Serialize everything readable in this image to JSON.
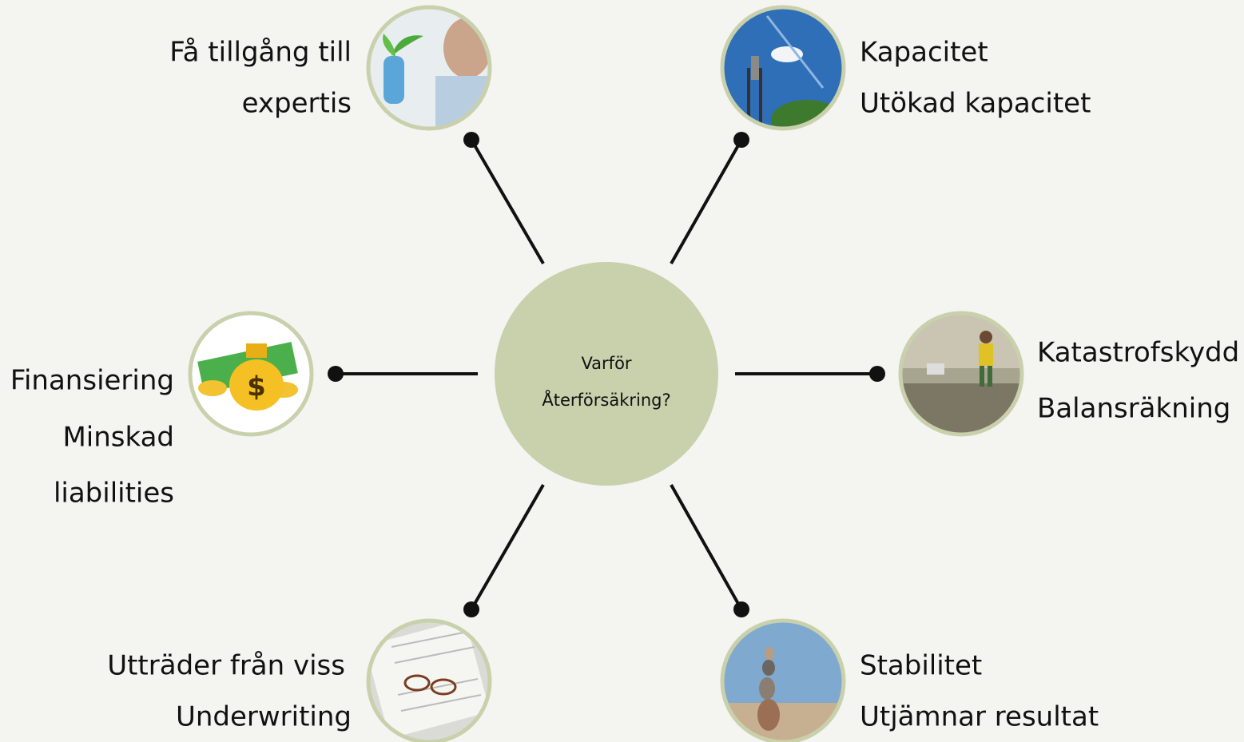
{
  "center": {
    "lines": [
      "Varför",
      "Återförsäkring?"
    ]
  },
  "nodes": [
    {
      "lines": [
        "Få tillgång till",
        "expertis"
      ]
    },
    {
      "lines": [
        "Kapacitet",
        "Utökad kapacitet"
      ]
    },
    {
      "lines": [
        "Finansiering",
        "Minskad",
        "liabilities"
      ]
    },
    {
      "lines": [
        "Katastrofskydd",
        "Balansräkning"
      ]
    },
    {
      "lines": [
        "Utträder från viss",
        "Underwriting"
      ]
    },
    {
      "lines": [
        "Stabilitet",
        "Utjämnar resultat"
      ]
    }
  ]
}
